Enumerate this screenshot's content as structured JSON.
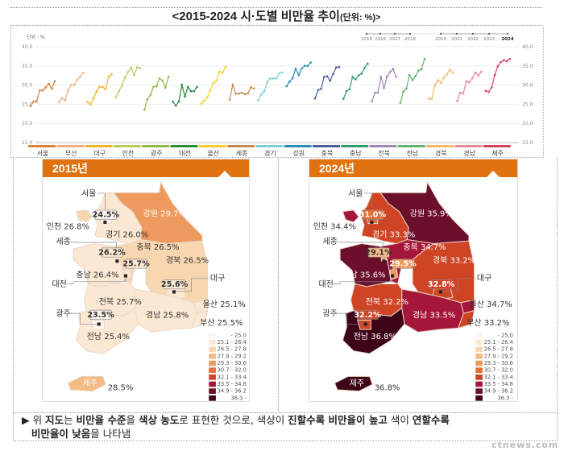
{
  "title": {
    "main": "<2015-2024 시·도별 비만율 추이",
    "unit": "(단위: %)>"
  },
  "chart_data": {
    "type": "line",
    "unit_label": "단위 : %",
    "ylim": [
      15,
      40
    ],
    "yticks": [
      "40.0",
      "35.0",
      "30.0",
      "25.0",
      "20.0",
      "15.0"
    ],
    "grid": true,
    "years": [
      "2015",
      "2016",
      "2017",
      "2018",
      "2019",
      "2021",
      "2022",
      "2023",
      "2024"
    ],
    "series": [
      {
        "name": "서울",
        "color": "#d9823f",
        "values": [
          24.5,
          25.7,
          25.7,
          28.6,
          28.6,
          29.4,
          30.3,
          29.0,
          31.0
        ]
      },
      {
        "name": "부산",
        "color": "#eeae80",
        "values": [
          25.5,
          26.6,
          26.0,
          28.6,
          30.1,
          30.0,
          31.4,
          32.2,
          33.2
        ]
      },
      {
        "name": "대구",
        "color": "#f0b429",
        "values": [
          25.6,
          24.9,
          26.6,
          28.3,
          29.5,
          29.5,
          28.9,
          32.2,
          32.8
        ]
      },
      {
        "name": "인천",
        "color": "#b5cf5a",
        "values": [
          26.8,
          28.4,
          29.9,
          32.0,
          33.4,
          34.6,
          32.6,
          34.6,
          34.4
        ]
      },
      {
        "name": "광주",
        "color": "#8fba47",
        "values": [
          23.5,
          26.3,
          27.4,
          29.5,
          29.7,
          31.7,
          31.2,
          29.3,
          32.2
        ]
      },
      {
        "name": "대전",
        "color": "#2e8b3e",
        "values": [
          25.7,
          24.6,
          25.7,
          30.1,
          27.0,
          29.5,
          28.4,
          28.4,
          29.5
        ]
      },
      {
        "name": "울산",
        "color": "#f2cf2a",
        "values": [
          25.1,
          26.0,
          26.8,
          28.6,
          30.5,
          31.1,
          33.5,
          33.2,
          34.7
        ]
      },
      {
        "name": "세종",
        "color": "#c98a4e",
        "values": [
          26.2,
          30.1,
          27.7,
          27.8,
          28.0,
          27.6,
          27.8,
          29.4,
          29.1
        ]
      },
      {
        "name": "경기",
        "color": "#7fcfcf",
        "values": [
          26.0,
          27.5,
          28.3,
          30.7,
          31.7,
          31.7,
          31.7,
          33.0,
          33.3
        ]
      },
      {
        "name": "강원",
        "color": "#2a8db3",
        "values": [
          29.7,
          30.9,
          31.8,
          34.3,
          32.6,
          34.3,
          35.0,
          35.0,
          35.9
        ]
      },
      {
        "name": "충북",
        "color": "#4a5f9c",
        "values": [
          26.5,
          28.7,
          29.0,
          32.1,
          32.3,
          31.1,
          32.9,
          34.6,
          34.7
        ]
      },
      {
        "name": "충남",
        "color": "#2a9d6b",
        "values": [
          26.4,
          28.4,
          28.9,
          32.1,
          31.5,
          32.5,
          33.0,
          34.5,
          35.6
        ]
      },
      {
        "name": "전북",
        "color": "#a285b8",
        "values": [
          25.7,
          28.0,
          28.0,
          32.2,
          29.2,
          32.2,
          33.4,
          34.2,
          32.2
        ]
      },
      {
        "name": "전남",
        "color": "#5fb36c",
        "values": [
          25.4,
          28.3,
          29.0,
          32.6,
          31.3,
          32.3,
          33.8,
          34.1,
          36.8
        ]
      },
      {
        "name": "경북",
        "color": "#f3b86a",
        "values": [
          26.5,
          26.4,
          29.9,
          31.3,
          30.6,
          32.0,
          32.8,
          34.0,
          33.2
        ]
      },
      {
        "name": "경남",
        "color": "#e6879a",
        "values": [
          25.8,
          28.0,
          27.8,
          31.0,
          30.7,
          31.8,
          33.3,
          32.5,
          33.5
        ]
      },
      {
        "name": "제주",
        "color": "#d6405b",
        "values": [
          28.5,
          28.2,
          29.4,
          32.6,
          34.9,
          36.0,
          36.5,
          36.2,
          36.8
        ]
      }
    ]
  },
  "legend_bins": [
    {
      "label": "- 25.0",
      "color": "#fdf6ef"
    },
    {
      "label": "25.1 - 26.4",
      "color": "#fbe8d3"
    },
    {
      "label": "26.5 - 27.8",
      "color": "#f8d6b0"
    },
    {
      "label": "27.9 - 29.2",
      "color": "#f4bb85"
    },
    {
      "label": "29.3 - 30.6",
      "color": "#ee9a5e"
    },
    {
      "label": "30.7 - 32.0",
      "color": "#e4703a"
    },
    {
      "label": "32.1 - 33.4",
      "color": "#cf4424"
    },
    {
      "label": "33.5 - 34.8",
      "color": "#a5173a"
    },
    {
      "label": "34.9 - 36.2",
      "color": "#6b0f2a"
    },
    {
      "label": "36.3 -",
      "color": "#3e0418"
    }
  ],
  "maps": [
    {
      "title": "2015년",
      "values": {
        "서울": 24.5,
        "인천": 26.8,
        "경기": 26.0,
        "강원": 29.7,
        "세종": 26.2,
        "충북": 26.5,
        "대전": 25.7,
        "충남": 26.4,
        "경북": 26.5,
        "대구": 25.6,
        "전북": 25.7,
        "울산": 25.1,
        "경남": 25.8,
        "광주": 23.5,
        "부산": 25.5,
        "전남": 25.4,
        "제주": 28.5
      }
    },
    {
      "title": "2024년",
      "values": {
        "서울": 31.0,
        "인천": 34.4,
        "경기": 33.3,
        "강원": 35.9,
        "세종": 29.1,
        "충북": 34.7,
        "대전": 29.5,
        "충남": 35.6,
        "경북": 33.2,
        "대구": 32.8,
        "전북": 32.2,
        "울산": 34.7,
        "경남": 33.5,
        "광주": 32.2,
        "부산": 33.2,
        "전남": 36.8,
        "제주": 36.8
      }
    }
  ],
  "note": {
    "bullet": "▶",
    "segments": [
      "위 ",
      "지도",
      "는 ",
      "비만율 수준",
      "을 ",
      "색상 농도",
      "로 표현한 것으로, 색상이 ",
      "진할수록 비만율이 높고",
      " 색이 ",
      "연할수록",
      "비만율이 낮음",
      "을 나타냄"
    ]
  },
  "watermark": "ctnews.com",
  "accent_color": "#e0720f"
}
